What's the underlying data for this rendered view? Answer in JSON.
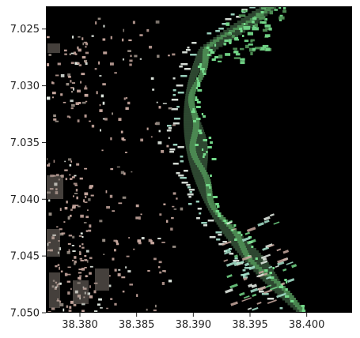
{
  "chart_data": {
    "type": "heatmap",
    "description": "Satellite image raster over 38.377-38.404 E, 7.023-7.050 N (black = masked/no data).",
    "x_ticks": [
      "38.380",
      "38.385",
      "38.390",
      "38.395",
      "38.400"
    ],
    "x_tick_values": [
      38.38,
      38.385,
      38.39,
      38.395,
      38.4
    ],
    "y_ticks": [
      "7.025",
      "7.030",
      "7.035",
      "7.040",
      "7.045",
      "7.050"
    ],
    "y_tick_values": [
      7.025,
      7.03,
      7.035,
      7.04,
      7.045,
      7.05
    ],
    "xlim": [
      38.377,
      38.404
    ],
    "ylim": [
      7.05,
      7.023
    ],
    "y_inverted": true,
    "grid": false,
    "colors": {
      "background": "#000000",
      "vegetation_dark": "#2f4a33",
      "vegetation_mid": "#4f8f55",
      "vegetation_bright": "#74d98a",
      "settlement_pink": "#c9a9a0",
      "settlement_grey": "#9a8f86",
      "bright_white": "#eaf2ea",
      "cyan_field": "#a8e6cf"
    }
  }
}
